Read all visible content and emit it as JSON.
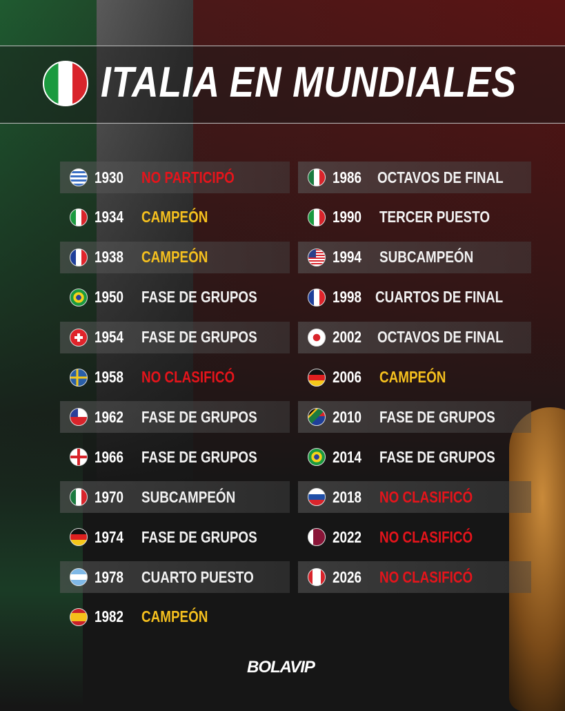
{
  "title": "ITALIA EN MUNDIALES",
  "brand": "BOLAVIP",
  "colors": {
    "champion": "#f5c01e",
    "absent": "#e5141b",
    "normal": "#f2f2f2"
  },
  "left": [
    {
      "year": "1930",
      "result": "NO PARTICIPÓ",
      "status": "absent",
      "flag": "uruguay"
    },
    {
      "year": "1934",
      "result": "CAMPEÓN",
      "status": "champion",
      "flag": "italy"
    },
    {
      "year": "1938",
      "result": "CAMPEÓN",
      "status": "champion",
      "flag": "france"
    },
    {
      "year": "1950",
      "result": "FASE DE GRUPOS",
      "status": "normal",
      "flag": "brazil"
    },
    {
      "year": "1954",
      "result": "FASE DE GRUPOS",
      "status": "normal",
      "flag": "switzerland"
    },
    {
      "year": "1958",
      "result": "NO CLASIFICÓ",
      "status": "absent",
      "flag": "sweden"
    },
    {
      "year": "1962",
      "result": "FASE DE GRUPOS",
      "status": "normal",
      "flag": "chile"
    },
    {
      "year": "1966",
      "result": "FASE DE GRUPOS",
      "status": "normal",
      "flag": "england"
    },
    {
      "year": "1970",
      "result": "SUBCAMPEÓN",
      "status": "normal",
      "flag": "mexico"
    },
    {
      "year": "1974",
      "result": "FASE DE GRUPOS",
      "status": "normal",
      "flag": "germany"
    },
    {
      "year": "1978",
      "result": "CUARTO PUESTO",
      "status": "normal",
      "flag": "argentina"
    },
    {
      "year": "1982",
      "result": "CAMPEÓN",
      "status": "champion",
      "flag": "spain"
    }
  ],
  "right": [
    {
      "year": "1986",
      "result": "OCTAVOS DE FINAL",
      "status": "normal",
      "flag": "mexico"
    },
    {
      "year": "1990",
      "result": "TERCER PUESTO",
      "status": "normal",
      "flag": "italy"
    },
    {
      "year": "1994",
      "result": "SUBCAMPEÓN",
      "status": "normal",
      "flag": "usa"
    },
    {
      "year": "1998",
      "result": "CUARTOS DE FINAL",
      "status": "normal",
      "flag": "france"
    },
    {
      "year": "2002",
      "result": "OCTAVOS DE FINAL",
      "status": "normal",
      "flag": "korea-japan"
    },
    {
      "year": "2006",
      "result": "CAMPEÓN",
      "status": "champion",
      "flag": "germany"
    },
    {
      "year": "2010",
      "result": "FASE DE GRUPOS",
      "status": "normal",
      "flag": "south-africa"
    },
    {
      "year": "2014",
      "result": "FASE DE GRUPOS",
      "status": "normal",
      "flag": "brazil"
    },
    {
      "year": "2018",
      "result": "NO CLASIFICÓ",
      "status": "absent",
      "flag": "russia"
    },
    {
      "year": "2022",
      "result": "NO CLASIFICÓ",
      "status": "absent",
      "flag": "qatar"
    },
    {
      "year": "2026",
      "result": "NO CLASIFICÓ",
      "status": "absent",
      "flag": "usa-mexico-canada"
    }
  ]
}
